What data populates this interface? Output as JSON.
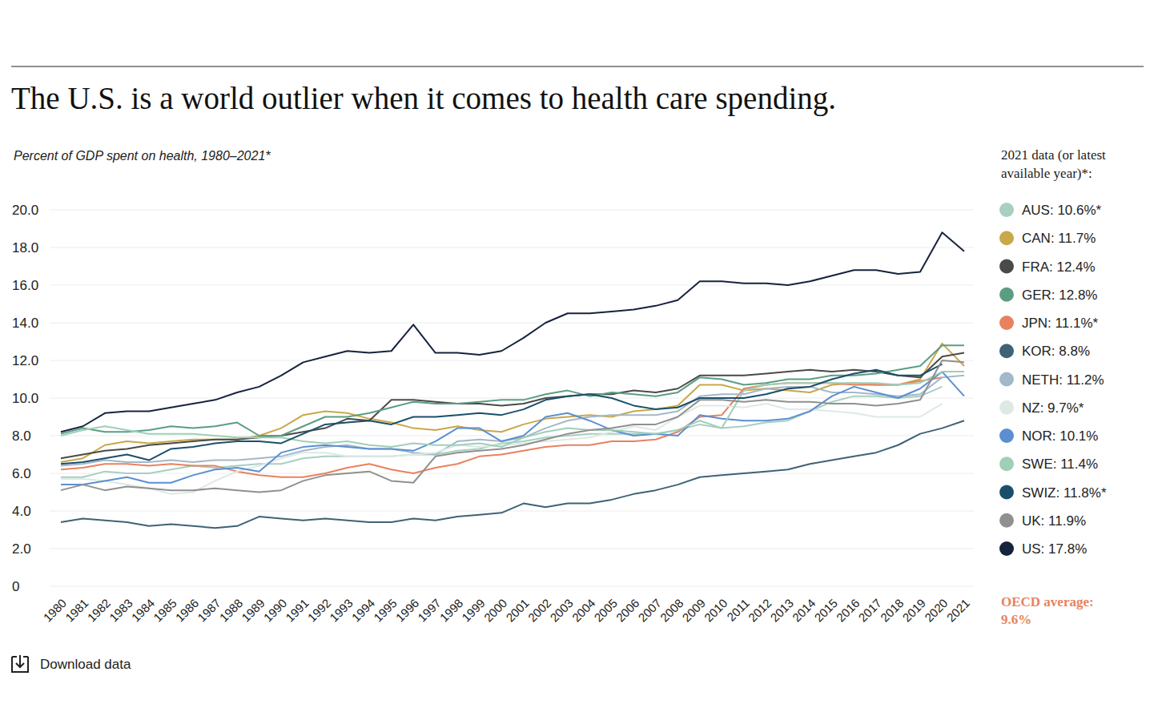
{
  "chart_data": {
    "type": "line",
    "title": "The U.S. is a world outlier when it comes to health care spending.",
    "subtitle": "Percent of GDP spent on health, 1980–2021*",
    "legend_title": [
      "2021 data (or latest",
      "available year)*:"
    ],
    "annotation": [
      "OECD average:",
      "9.6%"
    ],
    "download_text": "Download data",
    "grid": true,
    "legend": "right",
    "x": [
      1980,
      1981,
      1982,
      1983,
      1984,
      1985,
      1986,
      1987,
      1988,
      1989,
      1990,
      1991,
      1992,
      1993,
      1994,
      1995,
      1996,
      1997,
      1998,
      1999,
      2000,
      2001,
      2002,
      2003,
      2004,
      2005,
      2006,
      2007,
      2008,
      2009,
      2010,
      2011,
      2012,
      2013,
      2014,
      2015,
      2016,
      2017,
      2018,
      2019,
      2020,
      2021
    ],
    "xlim": [
      1980,
      2021
    ],
    "xticks": [
      1980,
      1981,
      1982,
      1983,
      1984,
      1985,
      1986,
      1987,
      1988,
      1989,
      1990,
      1991,
      1992,
      1993,
      1994,
      1995,
      1996,
      1997,
      1998,
      1999,
      2000,
      2001,
      2002,
      2003,
      2004,
      2005,
      2006,
      2007,
      2008,
      2009,
      2010,
      2011,
      2012,
      2013,
      2014,
      2015,
      2016,
      2017,
      2018,
      2019,
      2020,
      2021
    ],
    "ylim": [
      0,
      20
    ],
    "yticks": [
      0,
      {
        "value": 2,
        "label": "2.0"
      },
      {
        "value": 4,
        "label": "4.0"
      },
      {
        "value": 6,
        "label": "6.0"
      },
      {
        "value": 8,
        "label": "8.0"
      },
      {
        "value": 10,
        "label": "10.0"
      },
      {
        "value": 12,
        "label": "12.0"
      },
      {
        "value": 14,
        "label": "14.0"
      },
      {
        "value": 16,
        "label": "16.0"
      },
      {
        "value": 18,
        "label": "18.0"
      },
      {
        "value": 20,
        "label": "20.0"
      }
    ],
    "series": [
      {
        "name": "AUS: 10.6%*",
        "color": "#a8cfc0",
        "values": [
          5.8,
          5.8,
          6.1,
          6.0,
          6.0,
          6.2,
          6.4,
          6.3,
          6.4,
          6.5,
          6.5,
          6.8,
          6.9,
          6.9,
          6.9,
          6.9,
          7.0,
          7.0,
          7.2,
          7.3,
          7.6,
          7.7,
          7.9,
          8.0,
          8.1,
          8.1,
          8.1,
          8.1,
          8.3,
          8.6,
          8.4,
          8.5,
          8.7,
          8.8,
          9.3,
          9.8,
          10.1,
          10.1,
          10.0,
          10.1,
          10.6,
          null
        ]
      },
      {
        "name": "CAN: 11.7%",
        "color": "#c9a84a",
        "values": [
          6.6,
          6.8,
          7.5,
          7.7,
          7.6,
          7.7,
          7.8,
          7.8,
          7.8,
          8.0,
          8.4,
          9.1,
          9.3,
          9.2,
          8.9,
          8.7,
          8.4,
          8.3,
          8.5,
          8.3,
          8.2,
          8.6,
          8.9,
          9.0,
          9.1,
          9.0,
          9.3,
          9.4,
          9.6,
          10.7,
          10.7,
          10.4,
          10.5,
          10.4,
          10.3,
          10.7,
          10.8,
          10.7,
          10.7,
          11.0,
          12.9,
          11.7
        ]
      },
      {
        "name": "FRA: 12.4%",
        "color": "#4a4a48",
        "values": [
          6.8,
          7.0,
          7.2,
          7.3,
          7.5,
          7.6,
          7.7,
          7.8,
          7.8,
          7.9,
          8.0,
          8.2,
          8.4,
          8.9,
          8.8,
          9.9,
          9.9,
          9.8,
          9.7,
          9.7,
          9.6,
          9.7,
          10.0,
          10.1,
          10.2,
          10.2,
          10.4,
          10.3,
          10.5,
          11.2,
          11.2,
          11.2,
          11.3,
          11.4,
          11.5,
          11.4,
          11.5,
          11.4,
          11.2,
          11.1,
          12.2,
          12.4
        ]
      },
      {
        "name": "GER: 12.8%",
        "color": "#5a9e82",
        "values": [
          8.1,
          8.4,
          8.2,
          8.2,
          8.3,
          8.5,
          8.4,
          8.5,
          8.7,
          8.0,
          8.0,
          8.5,
          9.0,
          9.0,
          9.2,
          9.5,
          9.8,
          9.7,
          9.7,
          9.8,
          9.9,
          9.9,
          10.2,
          10.4,
          10.1,
          10.3,
          10.2,
          10.1,
          10.3,
          11.1,
          11.0,
          10.7,
          10.8,
          11.0,
          11.0,
          11.2,
          11.2,
          11.3,
          11.5,
          11.7,
          12.8,
          12.8
        ]
      },
      {
        "name": "JPN: 11.1%*",
        "color": "#e8825e",
        "values": [
          6.2,
          6.3,
          6.5,
          6.5,
          6.4,
          6.5,
          6.4,
          6.4,
          6.1,
          5.9,
          5.8,
          5.8,
          6.0,
          6.3,
          6.5,
          6.2,
          6.0,
          6.3,
          6.5,
          6.9,
          7.0,
          7.2,
          7.4,
          7.5,
          7.5,
          7.7,
          7.7,
          7.8,
          8.2,
          9.0,
          9.1,
          10.5,
          10.7,
          10.8,
          10.8,
          10.8,
          10.7,
          10.7,
          10.7,
          10.9,
          11.1,
          null
        ]
      },
      {
        "name": "KOR: 8.8%",
        "color": "#3f6275",
        "values": [
          3.4,
          3.6,
          3.5,
          3.4,
          3.2,
          3.3,
          3.2,
          3.1,
          3.2,
          3.7,
          3.6,
          3.5,
          3.6,
          3.5,
          3.4,
          3.4,
          3.6,
          3.5,
          3.7,
          3.8,
          3.9,
          4.4,
          4.2,
          4.4,
          4.4,
          4.6,
          4.9,
          5.1,
          5.4,
          5.8,
          5.9,
          6.0,
          6.1,
          6.2,
          6.5,
          6.7,
          6.9,
          7.1,
          7.5,
          8.1,
          8.4,
          8.8
        ]
      },
      {
        "name": "NETH: 11.2%",
        "color": "#a3b8c9",
        "values": [
          6.4,
          6.5,
          6.7,
          6.6,
          6.6,
          6.7,
          6.6,
          6.7,
          6.7,
          6.8,
          6.9,
          7.2,
          7.4,
          7.5,
          7.3,
          7.3,
          7.1,
          7.0,
          7.7,
          7.8,
          7.7,
          7.9,
          8.4,
          8.8,
          9.0,
          9.1,
          9.1,
          9.1,
          9.3,
          10.1,
          10.2,
          10.2,
          10.5,
          10.6,
          10.6,
          10.3,
          10.3,
          10.2,
          10.1,
          10.2,
          11.1,
          11.2
        ]
      },
      {
        "name": "NZ: 9.7%*",
        "color": "#dde9e4",
        "values": [
          5.7,
          5.7,
          5.6,
          5.4,
          5.2,
          4.9,
          5.0,
          5.6,
          6.1,
          6.4,
          6.8,
          7.1,
          7.1,
          6.9,
          6.9,
          6.9,
          7.0,
          7.1,
          7.5,
          7.4,
          7.5,
          7.6,
          7.7,
          7.8,
          7.9,
          8.2,
          8.5,
          8.3,
          9.0,
          9.6,
          9.6,
          9.5,
          9.7,
          9.4,
          9.4,
          9.3,
          9.2,
          9.0,
          9.0,
          9.0,
          9.7,
          null
        ]
      },
      {
        "name": "NOR: 10.1%",
        "color": "#5b8fd1",
        "values": [
          5.4,
          5.4,
          5.6,
          5.8,
          5.5,
          5.5,
          5.9,
          6.2,
          6.3,
          6.1,
          7.1,
          7.4,
          7.5,
          7.4,
          7.3,
          7.3,
          7.2,
          7.7,
          8.4,
          8.4,
          7.7,
          8.0,
          9.0,
          9.2,
          8.8,
          8.3,
          8.0,
          8.1,
          8.0,
          9.1,
          8.9,
          8.8,
          8.8,
          8.9,
          9.3,
          10.1,
          10.6,
          10.3,
          10.0,
          10.5,
          11.4,
          10.1
        ]
      },
      {
        "name": "SWE: 11.4%",
        "color": "#9fcfb8",
        "values": [
          8.0,
          8.3,
          8.5,
          8.3,
          8.1,
          8.1,
          8.1,
          8.0,
          7.9,
          7.9,
          7.9,
          7.7,
          7.6,
          7.7,
          7.5,
          7.4,
          7.6,
          7.5,
          7.5,
          7.6,
          7.4,
          7.9,
          8.2,
          8.4,
          8.3,
          8.3,
          8.2,
          8.1,
          8.3,
          8.8,
          8.4,
          10.4,
          10.7,
          10.8,
          10.8,
          10.8,
          10.8,
          10.8,
          10.7,
          10.8,
          11.4,
          11.4
        ]
      },
      {
        "name": "SWIZ: 11.8%*",
        "color": "#1a4f6b",
        "values": [
          6.5,
          6.6,
          6.8,
          7.0,
          6.7,
          7.3,
          7.4,
          7.6,
          7.7,
          7.7,
          7.6,
          8.1,
          8.6,
          8.7,
          8.8,
          8.6,
          9.0,
          9.0,
          9.1,
          9.2,
          9.1,
          9.4,
          9.9,
          10.1,
          10.2,
          10.0,
          9.6,
          9.4,
          9.5,
          10.0,
          10.0,
          10.0,
          10.2,
          10.5,
          10.6,
          11.0,
          11.3,
          11.5,
          11.2,
          11.2,
          11.8,
          null
        ]
      },
      {
        "name": "UK: 11.9%",
        "color": "#909090",
        "values": [
          5.1,
          5.4,
          5.1,
          5.3,
          5.2,
          5.1,
          5.1,
          5.2,
          5.1,
          5.0,
          5.1,
          5.6,
          5.9,
          6.0,
          6.1,
          5.6,
          5.5,
          6.9,
          7.1,
          7.2,
          7.3,
          7.5,
          7.8,
          8.1,
          8.3,
          8.4,
          8.6,
          8.6,
          9.0,
          9.9,
          9.9,
          9.8,
          9.9,
          9.8,
          9.8,
          9.7,
          9.7,
          9.6,
          9.7,
          9.9,
          12.0,
          11.9
        ]
      },
      {
        "name": "US: 17.8%",
        "color": "#16233d",
        "values": [
          8.2,
          8.5,
          9.2,
          9.3,
          9.3,
          9.5,
          9.7,
          9.9,
          10.3,
          10.6,
          11.2,
          11.9,
          12.2,
          12.5,
          12.4,
          12.5,
          13.9,
          12.4,
          12.4,
          12.3,
          12.5,
          13.2,
          14.0,
          14.5,
          14.5,
          14.6,
          14.7,
          14.9,
          15.2,
          16.2,
          16.2,
          16.1,
          16.1,
          16.0,
          16.2,
          16.5,
          16.8,
          16.8,
          16.6,
          16.7,
          18.8,
          17.8
        ]
      }
    ]
  }
}
